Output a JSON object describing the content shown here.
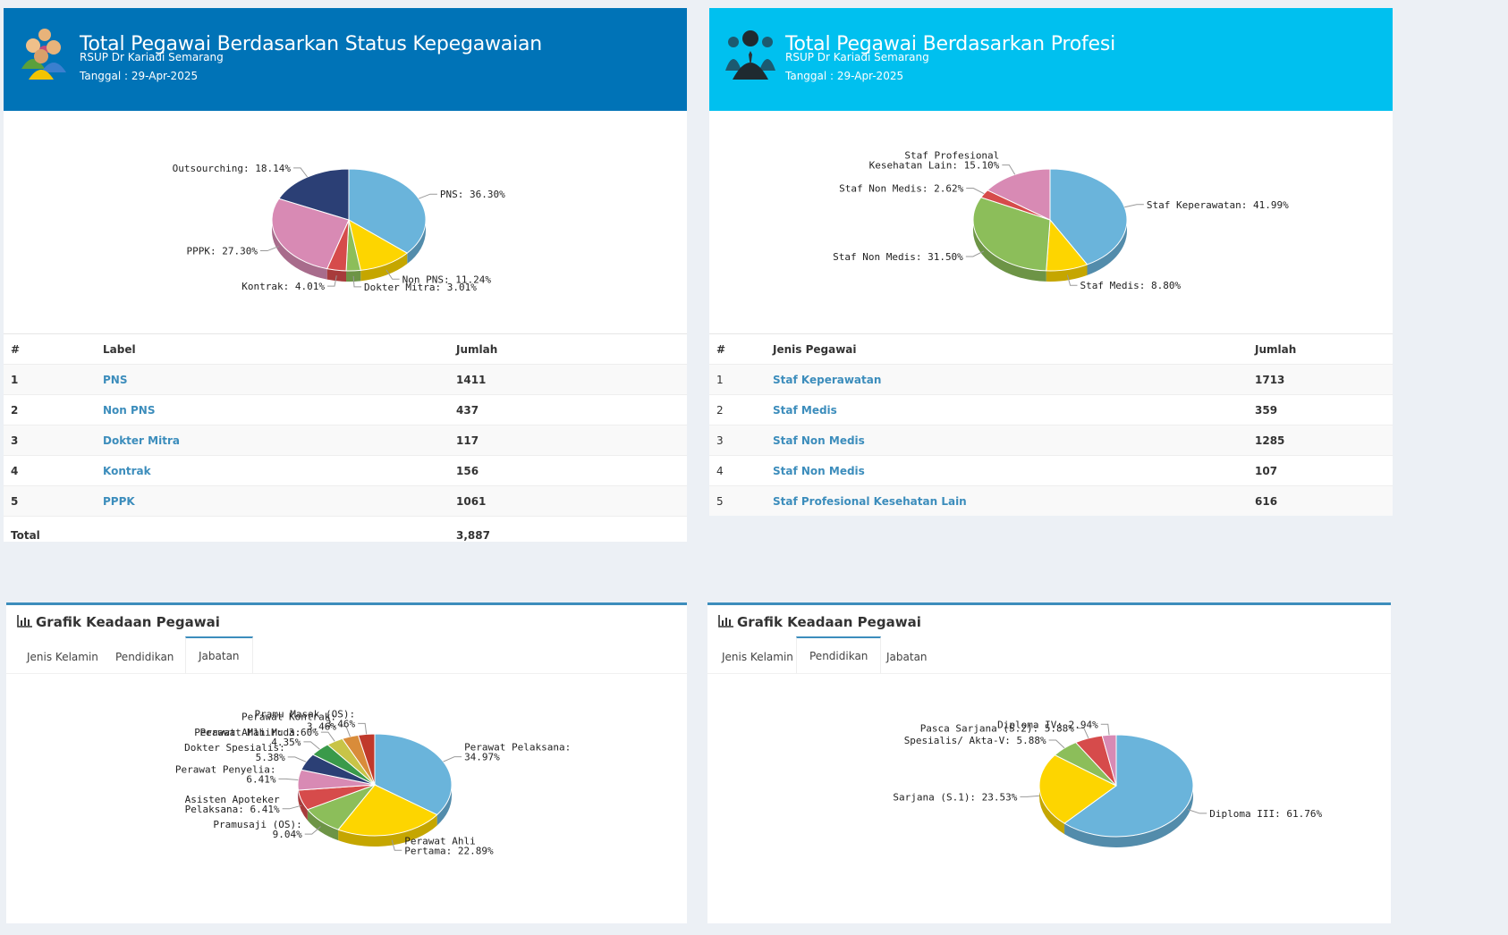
{
  "panels": {
    "status": {
      "title": "Total Pegawai Berdasarkan Status Kepegawaian",
      "org": "RSUP Dr Kariadi Semarang",
      "date": "Tanggal : 29-Apr-2025",
      "header_color": "#0073b7",
      "table": {
        "headers": [
          "#",
          "Label",
          "Jumlah"
        ],
        "rows": [
          {
            "no": "1",
            "label": "PNS",
            "value": "1411"
          },
          {
            "no": "2",
            "label": "Non PNS",
            "value": "437"
          },
          {
            "no": "3",
            "label": "Dokter Mitra",
            "value": "117"
          },
          {
            "no": "4",
            "label": "Kontrak",
            "value": "156"
          },
          {
            "no": "5",
            "label": "PPPK",
            "value": "1061"
          }
        ],
        "total_label": "Total",
        "total_value": "3,887"
      }
    },
    "profesi": {
      "title": "Total Pegawai Berdasarkan Profesi",
      "org": "RSUP Dr Kariadi Semarang",
      "date": "Tanggal : 29-Apr-2025",
      "header_color": "#00c0ef",
      "table": {
        "headers": [
          "#",
          "Jenis Pegawai",
          "Jumlah"
        ],
        "rows": [
          {
            "no": "1",
            "label": "Staf Keperawatan",
            "value": "1713"
          },
          {
            "no": "2",
            "label": "Staf Medis",
            "value": "359"
          },
          {
            "no": "3",
            "label": "Staf Non Medis",
            "value": "1285"
          },
          {
            "no": "4",
            "label": "Staf Non Medis",
            "value": "107"
          },
          {
            "no": "5",
            "label": "Staf Profesional Kesehatan Lain",
            "value": "616"
          }
        ]
      }
    },
    "grafik_left": {
      "title": "Grafik Keadaan Pegawai",
      "tabs": [
        "Jenis Kelamin",
        "Pendidikan",
        "Jabatan"
      ],
      "active_tab": 2
    },
    "grafik_right": {
      "title": "Grafik Keadaan Pegawai",
      "tabs": [
        "Jenis Kelamin",
        "Pendidikan",
        "Jabatan"
      ],
      "active_tab": 1
    }
  },
  "chart_data": [
    {
      "id": "status",
      "type": "pie",
      "slices": [
        {
          "label": "PNS: 36.30%",
          "value": 36.3,
          "color": "#6ab4db"
        },
        {
          "label": "Non PNS: 11.24%",
          "value": 11.24,
          "color": "#fdd500"
        },
        {
          "label": "Dokter Mitra: 3.01%",
          "value": 3.01,
          "color": "#8cbe5a"
        },
        {
          "label": "Kontrak: 4.01%",
          "value": 4.01,
          "color": "#d64b4b"
        },
        {
          "label": "PPPK: 27.30%",
          "value": 27.3,
          "color": "#d88ab4"
        },
        {
          "label": "Outsourching: 18.14%",
          "value": 18.14,
          "color": "#2b3f75"
        }
      ]
    },
    {
      "id": "profesi",
      "type": "pie",
      "slices": [
        {
          "label": "Staf Keperawatan: 41.99%",
          "value": 41.99,
          "color": "#6ab4db"
        },
        {
          "label": "Staf Medis: 8.80%",
          "value": 8.8,
          "color": "#fdd500"
        },
        {
          "label": "Staf Non Medis: 31.50%",
          "value": 31.5,
          "color": "#8cbe5a"
        },
        {
          "label": "Staf Non Medis: 2.62%",
          "value": 2.62,
          "color": "#d64b4b"
        },
        {
          "label": "Staf Profesional Kesehatan Lain: 15.10%",
          "value": 15.1,
          "color": "#d88ab4"
        }
      ]
    },
    {
      "id": "jabatan",
      "type": "pie",
      "slices": [
        {
          "label": "Perawat Pelaksana: 34.97%",
          "value": 34.97,
          "color": "#6ab4db"
        },
        {
          "label": "Perawat Ahli Pertama: 22.89%",
          "value": 22.89,
          "color": "#fdd500"
        },
        {
          "label": "Pramusaji (OS): 9.04%",
          "value": 9.04,
          "color": "#8cbe5a"
        },
        {
          "label": "Asisten Apoteker Pelaksana: 6.41%",
          "value": 6.41,
          "color": "#d64b4b"
        },
        {
          "label": "Perawat Penyelia: 6.41%",
          "value": 6.41,
          "color": "#d88ab4"
        },
        {
          "label": "Dokter Spesialis: 5.38%",
          "value": 5.38,
          "color": "#2b3f75"
        },
        {
          "label": "Perawat Ahli Muda: 4.35%",
          "value": 4.35,
          "color": "#3a9a4a"
        },
        {
          "label": "Perawat Mahir: 3.60%",
          "value": 3.6,
          "color": "#c8c447"
        },
        {
          "label": "Perawat Kontrak: 3.46%",
          "value": 3.46,
          "color": "#d98c3a"
        },
        {
          "label": "Pramu Masak (OS): 3.46%",
          "value": 3.46,
          "color": "#c0392b"
        }
      ]
    },
    {
      "id": "pendidikan",
      "type": "pie",
      "slices": [
        {
          "label": "Diploma III: 61.76%",
          "value": 61.76,
          "color": "#6ab4db"
        },
        {
          "label": "Sarjana (S.1): 23.53%",
          "value": 23.53,
          "color": "#fdd500"
        },
        {
          "label": "Spesialis/ Akta-V: 5.88%",
          "value": 5.88,
          "color": "#8cbe5a"
        },
        {
          "label": "Pasca Sarjana (S.2): 5.88%",
          "value": 5.88,
          "color": "#d64b4b"
        },
        {
          "label": "Diploma IV: 2.94%",
          "value": 2.94,
          "color": "#d88ab4"
        }
      ]
    }
  ]
}
